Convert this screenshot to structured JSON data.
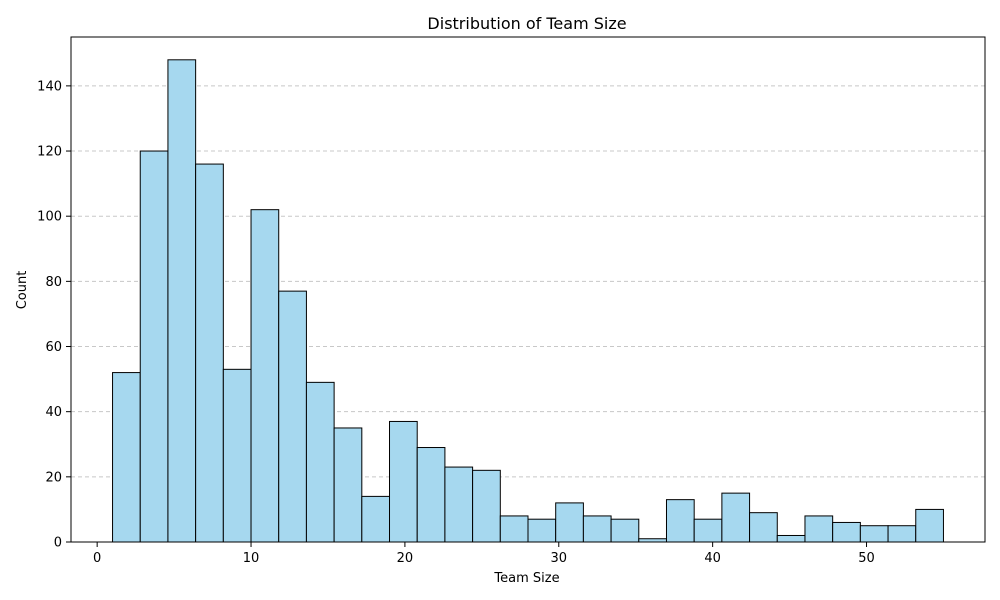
{
  "chart_data": {
    "type": "bar",
    "title": "Distribution of Team Size",
    "xlabel": "Team Size",
    "ylabel": "Count",
    "bin_edges": [
      1,
      2.8,
      4.6,
      6.4,
      8.2,
      10,
      11.8,
      13.6,
      15.4,
      17.2,
      19,
      20.8,
      22.6,
      24.4,
      26.2,
      28,
      29.8,
      31.6,
      33.4,
      35.2,
      37,
      38.8,
      40.6,
      42.4,
      44.2,
      46,
      47.8,
      49.6,
      51.4,
      53.2,
      55
    ],
    "values": [
      52,
      120,
      148,
      116,
      53,
      102,
      77,
      49,
      35,
      14,
      37,
      29,
      23,
      22,
      8,
      7,
      12,
      8,
      7,
      1,
      13,
      7,
      15,
      9,
      2,
      8,
      6,
      5,
      5,
      10
    ],
    "xlim": [
      -1.7,
      57.7
    ],
    "ylim": [
      0,
      155
    ],
    "xticks": [
      0,
      10,
      20,
      30,
      40,
      50
    ],
    "yticks": [
      0,
      20,
      40,
      60,
      80,
      100,
      120,
      140
    ],
    "grid": "y-dashed",
    "colors": {
      "bar_fill": "#a6d8ef",
      "bar_edge": "#000000",
      "grid": "#c8c8c8"
    }
  }
}
